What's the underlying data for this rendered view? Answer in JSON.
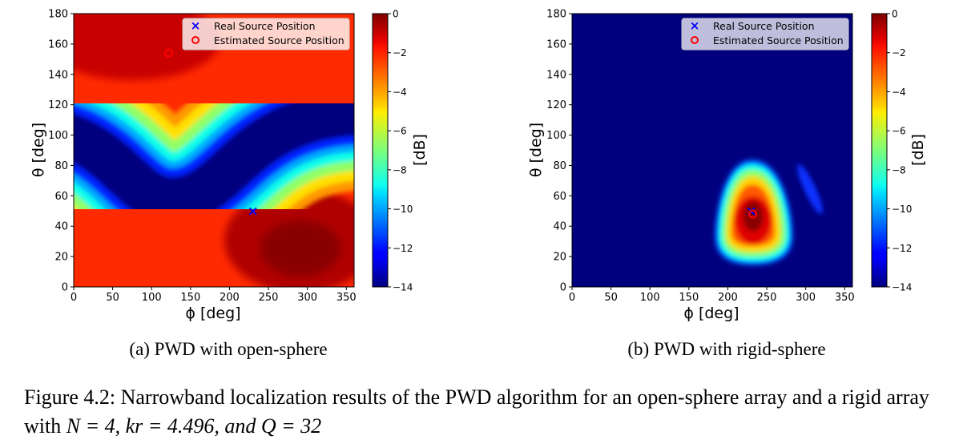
{
  "figure": {
    "caption_prefix": "Figure 4.2: ",
    "caption_text": "Narrowband localization results of the PWD algorithm for an open-sphere array and a rigid array with ",
    "caption_math": "N = 4, kr = 4.496, and Q = 32"
  },
  "chart_data": [
    {
      "type": "heatmap",
      "subcaption": "(a) PWD with open-sphere",
      "xlabel": "ϕ [deg]",
      "ylabel": "θ [deg]",
      "colorbar_label": "[dB]",
      "colormap": "jet",
      "xlim": [
        0,
        360
      ],
      "ylim": [
        0,
        180
      ],
      "xticks": [
        0,
        50,
        100,
        150,
        200,
        250,
        300,
        350
      ],
      "yticks": [
        0,
        20,
        40,
        60,
        80,
        100,
        120,
        140,
        160,
        180
      ],
      "clim": [
        -14,
        0
      ],
      "cticks": [
        0,
        -2,
        -4,
        -6,
        -8,
        -10,
        -12,
        -14
      ],
      "legend_position": "top-right",
      "legend": [
        "Real Source Position",
        "Estimated Source Position"
      ],
      "real_source": {
        "phi": 230,
        "theta": 50
      },
      "estimated_source": {
        "phi": 122,
        "theta": 154
      },
      "legend_style": "light"
    },
    {
      "type": "heatmap",
      "subcaption": "(b) PWD with rigid-sphere",
      "xlabel": "ϕ [deg]",
      "ylabel": "θ [deg]",
      "colorbar_label": "[dB]",
      "colormap": "jet",
      "xlim": [
        0,
        360
      ],
      "ylim": [
        0,
        180
      ],
      "xticks": [
        0,
        50,
        100,
        150,
        200,
        250,
        300,
        350
      ],
      "yticks": [
        0,
        20,
        40,
        60,
        80,
        100,
        120,
        140,
        160,
        180
      ],
      "clim": [
        -14,
        0
      ],
      "cticks": [
        0,
        -2,
        -4,
        -6,
        -8,
        -10,
        -12,
        -14
      ],
      "legend_position": "top-right",
      "legend": [
        "Real Source Position",
        "Estimated Source Position"
      ],
      "real_source": {
        "phi": 230,
        "theta": 50
      },
      "estimated_source": {
        "phi": 232,
        "theta": 48
      },
      "legend_style": "dark"
    }
  ]
}
